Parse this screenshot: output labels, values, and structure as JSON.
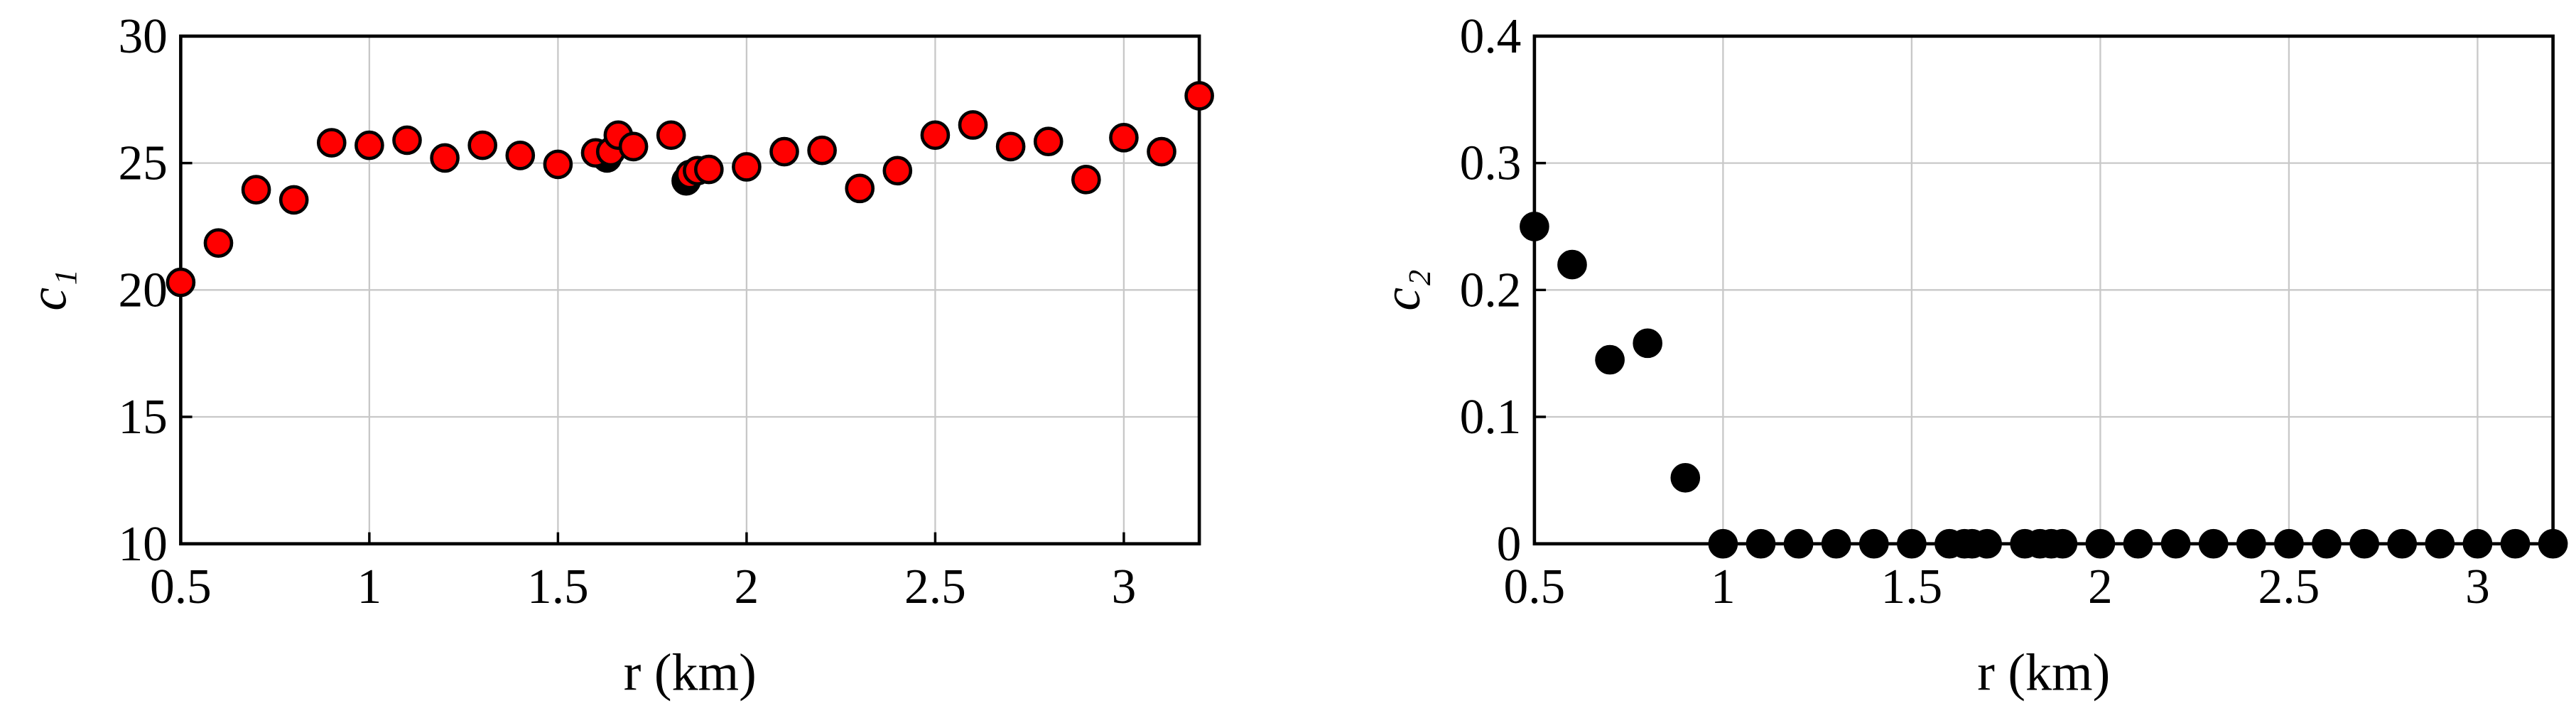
{
  "chart_data": [
    {
      "type": "scatter",
      "xlabel": "r (km)",
      "ylabel": "c₁",
      "xlim": [
        0.5,
        3.2
      ],
      "ylim": [
        10,
        30
      ],
      "xticks": [
        0.5,
        1,
        1.5,
        2,
        2.5,
        3
      ],
      "yticks": [
        10,
        15,
        20,
        25,
        30
      ],
      "grid": true,
      "series": [
        {
          "color": "#000000",
          "x": [
            1.63,
            1.84
          ],
          "values": [
            25.2,
            24.3
          ]
        },
        {
          "color": "#ff0000",
          "x": [
            0.5,
            0.6,
            0.7,
            0.8,
            0.9,
            1.0,
            1.1,
            1.2,
            1.3,
            1.4,
            1.5,
            1.6,
            1.64,
            1.66,
            1.7,
            1.8,
            1.85,
            1.87,
            1.9,
            2.0,
            2.1,
            2.2,
            2.3,
            2.4,
            2.5,
            2.6,
            2.7,
            2.8,
            2.9,
            3.0,
            3.1,
            3.2
          ],
          "values": [
            20.3,
            21.85,
            23.95,
            23.55,
            25.8,
            25.7,
            25.9,
            25.2,
            25.7,
            25.3,
            24.95,
            25.4,
            25.45,
            26.1,
            25.65,
            26.1,
            24.55,
            24.7,
            24.75,
            24.85,
            25.45,
            25.5,
            24.0,
            24.7,
            26.1,
            26.5,
            25.65,
            25.85,
            24.35,
            26.0,
            25.45,
            27.65
          ]
        }
      ]
    },
    {
      "type": "scatter",
      "xlabel": "r (km)",
      "ylabel": "c₂",
      "xlim": [
        0.5,
        3.2
      ],
      "ylim": [
        0,
        0.4
      ],
      "xticks": [
        0.5,
        1,
        1.5,
        2,
        2.5,
        3
      ],
      "yticks": [
        0,
        0.1,
        0.2,
        0.3,
        0.4
      ],
      "grid": true,
      "series": [
        {
          "color": "#000000",
          "x": [
            0.5,
            0.6,
            0.7,
            0.8,
            0.9,
            1.0,
            1.1,
            1.2,
            1.3,
            1.4,
            1.5,
            1.6,
            1.64,
            1.66,
            1.7,
            1.8,
            1.84,
            1.87,
            1.9,
            2.0,
            2.1,
            2.2,
            2.3,
            2.4,
            2.5,
            2.6,
            2.7,
            2.8,
            2.9,
            3.0,
            3.1,
            3.2
          ],
          "values": [
            0.25,
            0.22,
            0.145,
            0.158,
            0.052,
            0,
            0,
            0,
            0,
            0,
            0,
            0,
            0,
            0,
            0,
            0,
            0,
            0,
            0,
            0,
            0,
            0,
            0,
            0,
            0,
            0,
            0,
            0,
            0,
            0,
            0,
            0
          ]
        }
      ]
    }
  ]
}
